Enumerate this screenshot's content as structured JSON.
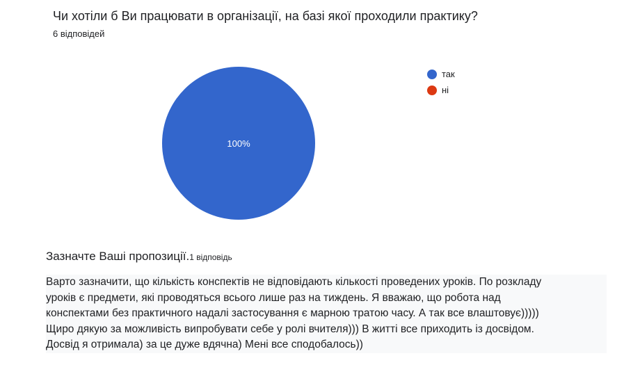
{
  "question1": {
    "title": "Чи хотіли б Ви працювати в організації, на базі якої проходили практику?",
    "response_count": "6 відповідей"
  },
  "chart_data": {
    "type": "pie",
    "categories": [
      "так",
      "ні"
    ],
    "values": [
      6,
      0
    ],
    "percent_labels": [
      "100%",
      ""
    ],
    "colors": [
      "#3366cc",
      "#dc3912"
    ],
    "legend_position": "right"
  },
  "question2": {
    "title": "Зазначте Ваші пропозиції.",
    "response_count": "1 відповідь",
    "answer_lines": [
      "Варто зазначити, що кількість конспектів не відповідають кількості проведених уроків. По розкладу",
      "уроків є предмети, які проводяться всього лише раз на тиждень. Я вважаю, що робота над",
      "конспектами без практичного надалі застосування є марною тратою часу. А так все влаштовує)))))",
      "Щиро дякую за можливість випробувати себе у ролі вчителя))) В житті все приходить із досвідом.",
      "Досвід я отримала) за це дуже вдячна) Мені все сподобалось))"
    ]
  }
}
